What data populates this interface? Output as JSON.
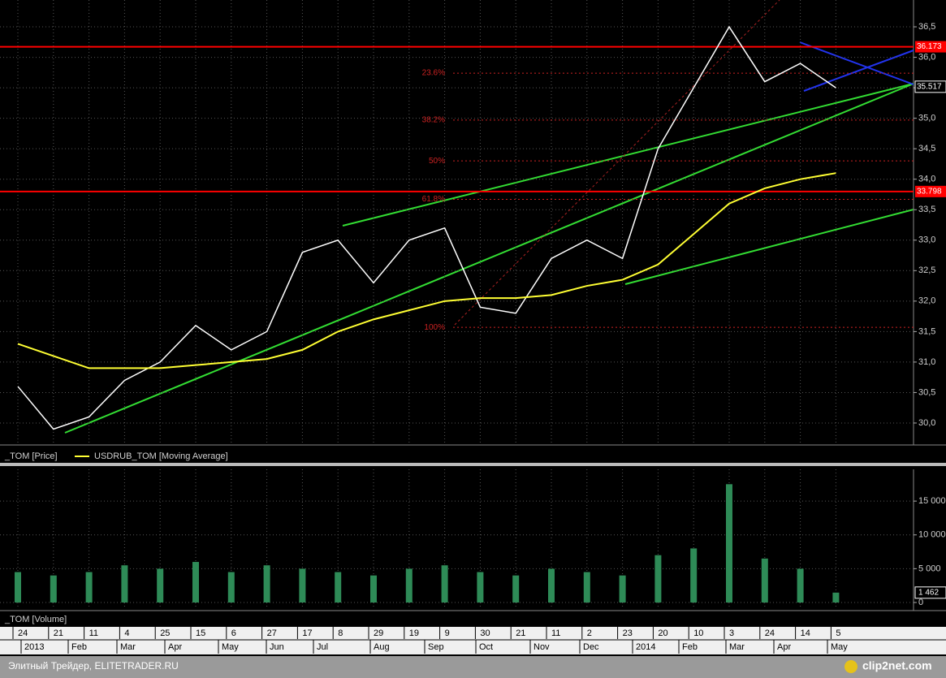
{
  "chart_data": [
    {
      "type": "line",
      "categories": [
        "24",
        "21",
        "11",
        "4",
        "25",
        "15",
        "6",
        "27",
        "17",
        "8",
        "29",
        "19",
        "9",
        "30",
        "21",
        "11",
        "2",
        "23",
        "20",
        "10",
        "3",
        "24",
        "14",
        "5"
      ],
      "month_labels": [
        "2013",
        "Feb",
        "Mar",
        "Apr",
        "May",
        "Jun",
        "Jul",
        "Aug",
        "Sep",
        "Oct",
        "Nov",
        "Dec",
        "2014",
        "Feb",
        "Mar",
        "Apr",
        "May"
      ],
      "series": [
        {
          "name": "_TOM [Price]",
          "color": "#ffffff",
          "values": [
            30.6,
            29.9,
            30.1,
            30.7,
            31.0,
            31.6,
            31.2,
            31.5,
            32.8,
            33.0,
            32.3,
            33.0,
            33.2,
            31.9,
            31.8,
            32.7,
            33.0,
            32.7,
            34.5,
            35.5,
            36.5,
            35.6,
            35.9,
            35.5
          ]
        },
        {
          "name": "USDRUB_TOM [Moving Average]",
          "color": "#ffff33",
          "values": [
            31.3,
            31.1,
            30.9,
            30.9,
            30.9,
            30.95,
            31.0,
            31.05,
            31.2,
            31.5,
            31.7,
            31.85,
            32.0,
            32.05,
            32.05,
            32.1,
            32.25,
            32.35,
            32.6,
            33.1,
            33.6,
            33.85,
            34.0,
            34.1
          ]
        }
      ],
      "ylim": [
        29.64,
        36.94
      ],
      "yticks": [
        {
          "value": 30.0,
          "label": "30,0"
        },
        {
          "value": 30.5,
          "label": "30,5"
        },
        {
          "value": 31.0,
          "label": "31,0"
        },
        {
          "value": 31.5,
          "label": "31,5"
        },
        {
          "value": 32.0,
          "label": "32,0"
        },
        {
          "value": 32.5,
          "label": "32,5"
        },
        {
          "value": 33.0,
          "label": "33,0"
        },
        {
          "value": 33.5,
          "label": "33,5"
        },
        {
          "value": 34.0,
          "label": "34,0"
        },
        {
          "value": 34.5,
          "label": "34,5"
        },
        {
          "value": 35.0,
          "label": "35,0"
        },
        {
          "value": 35.5,
          "label": "35,5"
        },
        {
          "value": 36.0,
          "label": "36,0"
        },
        {
          "value": 36.5,
          "label": "36,5"
        }
      ],
      "grid": true,
      "levels": [
        {
          "value": 36.173,
          "label": "36.173",
          "color": "#ff0000"
        },
        {
          "value": 33.798,
          "label": "33.798",
          "color": "#ff0000"
        }
      ],
      "last_price": {
        "value": 35.517,
        "label": "35.517"
      },
      "fib_levels": [
        {
          "label": "23.6%",
          "value": 35.74
        },
        {
          "label": "38.2%",
          "value": 34.97
        },
        {
          "label": "50%",
          "value": 34.3
        },
        {
          "label": "61.8%",
          "value": 33.67
        },
        {
          "label": "100%",
          "value": 31.57
        }
      ]
    },
    {
      "type": "bar",
      "series": [
        {
          "name": "_TOM [Volume]",
          "color": "#2e8b57",
          "values": [
            4500,
            4000,
            4500,
            5500,
            5000,
            6000,
            4500,
            5500,
            5000,
            4500,
            4000,
            5000,
            5500,
            4500,
            4000,
            5000,
            4500,
            4000,
            7000,
            8000,
            17500,
            6500,
            5000,
            1462
          ]
        }
      ],
      "ylim": [
        -960,
        19700
      ],
      "yticks": [
        0,
        {
          "value": 5000,
          "label": "5 000"
        },
        {
          "value": 10000,
          "label": "10 000"
        },
        {
          "value": 15000,
          "label": "15 000"
        }
      ],
      "grid": true,
      "last_value": {
        "value": 1462,
        "label": "1 462"
      }
    }
  ],
  "footer": {
    "text": "Элитный Трейдер, ELITETRADER.RU",
    "logo": "clip2net.com"
  }
}
